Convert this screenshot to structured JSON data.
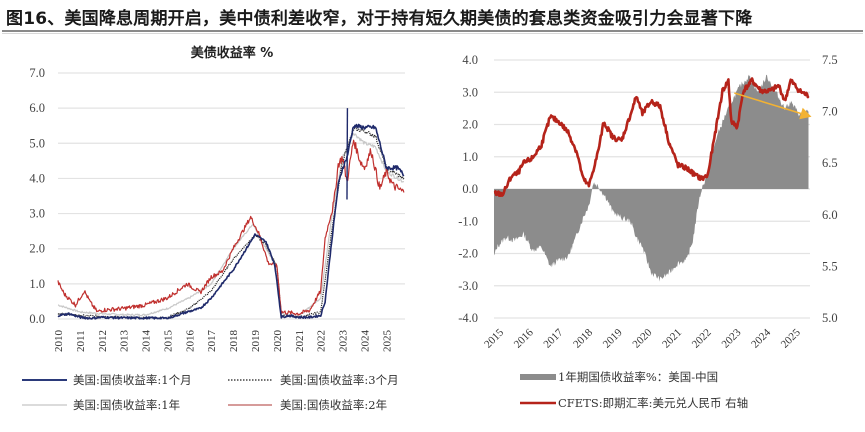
{
  "figure": {
    "title": "图16、美国降息周期开启，美中债利差收窄，对于持有短久期美债的套息类资金吸引力会显著下降"
  },
  "chart_data": [
    {
      "type": "line",
      "title": "美债收益率 %",
      "xlabel": "",
      "ylabel": "",
      "ylim": [
        0,
        7
      ],
      "yticks": [
        "0.0",
        "1.0",
        "2.0",
        "3.0",
        "4.0",
        "5.0",
        "6.0",
        "7.0"
      ],
      "categories": [
        "2010",
        "2011",
        "2012",
        "2013",
        "2014",
        "2015",
        "2016",
        "2017",
        "2018",
        "2019",
        "2020",
        "2021",
        "2022",
        "2023",
        "2024",
        "2025"
      ],
      "x_tick_rotation": -90,
      "grid": true,
      "legend_position": "bottom",
      "series": [
        {
          "name": "美国:国债收益率:1个月",
          "color": "#1f2a6b",
          "style": "solid",
          "x": [
            2010,
            2010.5,
            2011,
            2011.5,
            2012,
            2013,
            2014,
            2015,
            2015.9,
            2016.5,
            2017,
            2017.5,
            2018,
            2018.5,
            2019,
            2019.5,
            2019.9,
            2020.2,
            2020.5,
            2021,
            2021.5,
            2022,
            2022.2,
            2022.5,
            2022.8,
            2023,
            2023.2,
            2023.5,
            2024,
            2024.5,
            2024.7,
            2025,
            2025.5,
            2025.8
          ],
          "values": [
            0.1,
            0.15,
            0.05,
            0.02,
            0.05,
            0.03,
            0.03,
            0.02,
            0.2,
            0.3,
            0.6,
            1.0,
            1.4,
            1.9,
            2.4,
            2.2,
            1.55,
            0.05,
            0.1,
            0.05,
            0.05,
            0.1,
            0.5,
            2.2,
            3.8,
            4.3,
            4.6,
            5.5,
            5.45,
            5.45,
            5.0,
            4.3,
            4.3,
            4.1
          ]
        },
        {
          "name": "美国:国债收益率:3个月",
          "color": "#2a2a2a",
          "style": "dotted",
          "x": [
            2010,
            2011,
            2012,
            2013,
            2014,
            2015,
            2016,
            2017,
            2018,
            2019,
            2019.5,
            2020,
            2020.2,
            2021,
            2022,
            2022.5,
            2023,
            2023.5,
            2024,
            2024.5,
            2025,
            2025.8
          ],
          "values": [
            0.15,
            0.1,
            0.08,
            0.05,
            0.03,
            0.05,
            0.3,
            0.8,
            1.7,
            2.4,
            2.1,
            1.5,
            0.1,
            0.05,
            0.2,
            2.5,
            4.5,
            5.4,
            5.35,
            5.2,
            4.3,
            4.0
          ]
        },
        {
          "name": "美国:国债收益率:1年",
          "color": "#c8c8c8",
          "style": "solid",
          "x": [
            2010,
            2010.5,
            2011,
            2012,
            2013,
            2014,
            2015,
            2016,
            2017,
            2018,
            2018.9,
            2019.5,
            2020,
            2020.2,
            2021,
            2022,
            2022.5,
            2023,
            2023.5,
            2024,
            2024.5,
            2025,
            2025.8
          ],
          "values": [
            0.4,
            0.3,
            0.2,
            0.15,
            0.12,
            0.12,
            0.3,
            0.6,
            1.0,
            2.0,
            2.7,
            2.0,
            1.5,
            0.15,
            0.08,
            0.6,
            2.9,
            4.6,
            5.3,
            5.0,
            4.9,
            4.2,
            3.9
          ]
        },
        {
          "name": "美国:国债收益率:2年",
          "color": "#c0302e",
          "style": "solid",
          "x": [
            2010,
            2010.3,
            2010.8,
            2011.2,
            2011.5,
            2011.8,
            2012,
            2013,
            2014,
            2015,
            2015.9,
            2016.5,
            2017,
            2017.5,
            2018,
            2018.8,
            2019.2,
            2019.6,
            2020,
            2020.2,
            2021,
            2021.5,
            2022,
            2022.2,
            2022.6,
            2022.8,
            2023,
            2023.2,
            2023.5,
            2023.8,
            2024,
            2024.3,
            2024.7,
            2025,
            2025.3,
            2025.8
          ],
          "values": [
            1.05,
            0.7,
            0.4,
            0.8,
            0.45,
            0.2,
            0.25,
            0.3,
            0.4,
            0.6,
            1.0,
            0.75,
            1.2,
            1.35,
            2.0,
            2.9,
            2.4,
            1.6,
            1.5,
            0.2,
            0.15,
            0.25,
            0.8,
            2.3,
            3.3,
            4.4,
            4.6,
            3.9,
            5.1,
            4.5,
            4.3,
            4.8,
            3.7,
            4.2,
            3.8,
            3.6
          ]
        }
      ]
    },
    {
      "type": "area+line",
      "title": "",
      "xlabel": "",
      "ylabel_left": "",
      "ylabel_right": "",
      "ylim_left": [
        -4,
        4
      ],
      "ylim_right": [
        5.0,
        7.5
      ],
      "yticks_left": [
        "4.0",
        "3.0",
        "2.0",
        "1.0",
        "0.0",
        "-1.0",
        "-2.0",
        "-3.0",
        "-4.0"
      ],
      "yticks_right": [
        "7.5",
        "7.0",
        "6.5",
        "6.0",
        "5.5",
        "5.0"
      ],
      "categories": [
        "2015",
        "2016",
        "2017",
        "2018",
        "2019",
        "2020",
        "2021",
        "2022",
        "2023",
        "2024",
        "2025"
      ],
      "x_tick_rotation": -45,
      "grid": true,
      "legend_position": "bottom",
      "series": [
        {
          "name": "1年期国债收益率%：美国-中国",
          "type": "area",
          "axis": "left",
          "color": "#8c8c8c",
          "x": [
            2015,
            2015.1,
            2015.4,
            2015.7,
            2016,
            2016.3,
            2016.6,
            2016.9,
            2017.2,
            2017.5,
            2017.8,
            2018.0,
            2018.2,
            2018.35,
            2018.5,
            2018.8,
            2019,
            2019.3,
            2019.6,
            2019.8,
            2020,
            2020.3,
            2020.6,
            2020.9,
            2021.2,
            2021.5,
            2021.7,
            2021.9,
            2022,
            2022.2,
            2022.5,
            2022.8,
            2023,
            2023.3,
            2023.6,
            2023.9,
            2024.2,
            2024.5,
            2024.8,
            2025,
            2025.3,
            2025.6
          ],
          "values": [
            -2.1,
            -1.8,
            -1.5,
            -1.6,
            -1.4,
            -1.9,
            -1.8,
            -2.4,
            -2.2,
            -2.1,
            -1.4,
            -0.9,
            -0.5,
            0.2,
            0.1,
            -0.3,
            -0.7,
            -0.9,
            -1.0,
            -1.5,
            -1.8,
            -2.6,
            -2.8,
            -2.6,
            -2.3,
            -2.2,
            -1.6,
            -0.4,
            0.0,
            0.5,
            1.6,
            2.3,
            2.7,
            3.2,
            3.5,
            3.0,
            3.5,
            3.0,
            2.5,
            2.7,
            2.3,
            2.4
          ]
        },
        {
          "name": "CFETS:即期汇率:美元兑人民币 右轴",
          "type": "line",
          "axis": "right",
          "color": "#b5231a",
          "x": [
            2015,
            2015.3,
            2015.6,
            2015.8,
            2016,
            2016.3,
            2016.6,
            2016.9,
            2017.2,
            2017.5,
            2017.8,
            2018,
            2018.2,
            2018.5,
            2018.7,
            2019,
            2019.3,
            2019.6,
            2019.8,
            2020,
            2020.3,
            2020.6,
            2020.9,
            2021.2,
            2021.5,
            2021.8,
            2022,
            2022.2,
            2022.4,
            2022.7,
            2022.9,
            2023,
            2023.2,
            2023.4,
            2023.7,
            2024,
            2024.3,
            2024.6,
            2024.8,
            2025,
            2025.3,
            2025.6
          ],
          "values": [
            6.21,
            6.2,
            6.38,
            6.4,
            6.5,
            6.55,
            6.68,
            6.95,
            6.9,
            6.8,
            6.6,
            6.35,
            6.28,
            6.6,
            6.9,
            6.75,
            6.72,
            6.97,
            7.15,
            6.98,
            7.1,
            7.05,
            6.7,
            6.48,
            6.45,
            6.38,
            6.35,
            6.38,
            6.7,
            7.2,
            7.3,
            6.9,
            6.85,
            7.2,
            7.3,
            7.2,
            7.2,
            7.25,
            7.1,
            7.3,
            7.2,
            7.15
          ]
        }
      ],
      "annotations": [
        {
          "type": "arrow",
          "color": "#f2b233",
          "from": {
            "x": 2023.1,
            "y_right": 7.18
          },
          "to": {
            "x": 2025.7,
            "y_right": 6.95
          }
        }
      ]
    }
  ],
  "left_chart": {
    "title": "美债收益率 %",
    "legend": [
      {
        "label": "美国:国债收益率:1个月"
      },
      {
        "label": "美国:国债收益率:3个月"
      },
      {
        "label": "美国:国债收益率:1年"
      },
      {
        "label": "美国:国债收益率:2年"
      }
    ]
  },
  "right_chart": {
    "legend": [
      {
        "label": "1年期国债收益率%：美国-中国"
      },
      {
        "label": "CFETS:即期汇率:美元兑人民币 右轴"
      }
    ]
  }
}
